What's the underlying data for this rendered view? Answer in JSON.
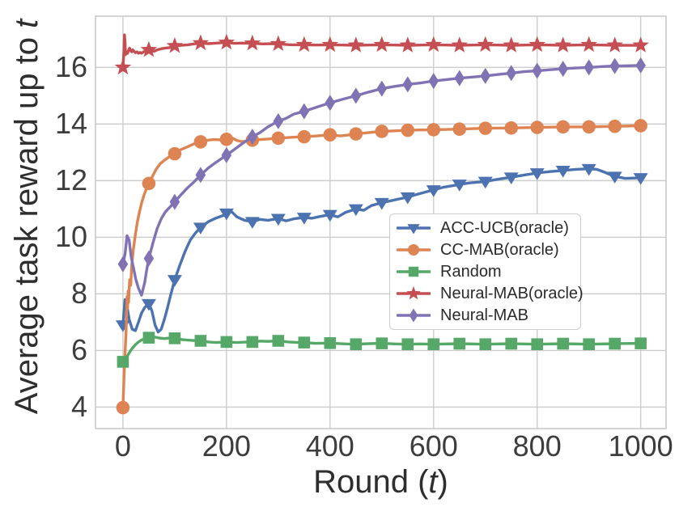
{
  "figure": {
    "background": "#ffffff",
    "text_color": "#2e2e2e",
    "tick_color": "#3d3d3d",
    "grid_color": "#cdcdcd",
    "border_color": "#c9c9c9"
  },
  "axes": {
    "xlabel_prefix": "Round (",
    "xlabel_italic": "t",
    "xlabel_suffix": ")",
    "ylabel_prefix": "Average task reward up to ",
    "ylabel_italic": "t"
  },
  "chart_data": {
    "type": "line",
    "title": "",
    "xlabel": "Round (t)",
    "ylabel": "Average task reward up to t",
    "xlim": [
      -53,
      1049
    ],
    "ylim": [
      3.24,
      17.81
    ],
    "xticks": [
      0,
      200,
      400,
      600,
      800,
      1000
    ],
    "yticks": [
      4,
      6,
      8,
      10,
      12,
      14,
      16
    ],
    "grid": true,
    "marker_interval": 50,
    "legend_position": "center-right",
    "series": [
      {
        "name": "ACC-UCB(oracle)",
        "color": "#4C72B0",
        "marker": "triangle-down",
        "points": [
          [
            0,
            6.9
          ],
          [
            4,
            7.8
          ],
          [
            8,
            7.55
          ],
          [
            12,
            7.1
          ],
          [
            18,
            6.75
          ],
          [
            24,
            6.7
          ],
          [
            30,
            7.0
          ],
          [
            36,
            7.32
          ],
          [
            42,
            7.52
          ],
          [
            50,
            7.65
          ],
          [
            56,
            7.4
          ],
          [
            62,
            6.9
          ],
          [
            68,
            6.65
          ],
          [
            74,
            6.75
          ],
          [
            80,
            7.1
          ],
          [
            86,
            7.5
          ],
          [
            92,
            7.95
          ],
          [
            100,
            8.5
          ],
          [
            110,
            9.02
          ],
          [
            120,
            9.5
          ],
          [
            130,
            9.9
          ],
          [
            140,
            10.15
          ],
          [
            150,
            10.35
          ],
          [
            165,
            10.55
          ],
          [
            180,
            10.68
          ],
          [
            195,
            10.78
          ],
          [
            200,
            10.85
          ],
          [
            210,
            10.9
          ],
          [
            220,
            10.72
          ],
          [
            235,
            10.6
          ],
          [
            250,
            10.55
          ],
          [
            265,
            10.63
          ],
          [
            280,
            10.6
          ],
          [
            300,
            10.66
          ],
          [
            315,
            10.58
          ],
          [
            330,
            10.65
          ],
          [
            350,
            10.7
          ],
          [
            365,
            10.67
          ],
          [
            380,
            10.73
          ],
          [
            400,
            10.8
          ],
          [
            415,
            10.72
          ],
          [
            430,
            10.88
          ],
          [
            450,
            11.0
          ],
          [
            465,
            10.95
          ],
          [
            480,
            11.12
          ],
          [
            500,
            11.22
          ],
          [
            520,
            11.3
          ],
          [
            540,
            11.38
          ],
          [
            550,
            11.42
          ],
          [
            565,
            11.5
          ],
          [
            585,
            11.6
          ],
          [
            600,
            11.67
          ],
          [
            620,
            11.77
          ],
          [
            640,
            11.83
          ],
          [
            650,
            11.87
          ],
          [
            670,
            11.92
          ],
          [
            700,
            11.97
          ],
          [
            725,
            12.05
          ],
          [
            750,
            12.12
          ],
          [
            775,
            12.2
          ],
          [
            800,
            12.27
          ],
          [
            825,
            12.32
          ],
          [
            850,
            12.36
          ],
          [
            875,
            12.4
          ],
          [
            900,
            12.42
          ],
          [
            915,
            12.4
          ],
          [
            930,
            12.3
          ],
          [
            945,
            12.18
          ],
          [
            950,
            12.15
          ],
          [
            970,
            12.08
          ],
          [
            1000,
            12.1
          ]
        ]
      },
      {
        "name": "CC-MAB(oracle)",
        "color": "#DD8452",
        "marker": "circle",
        "points": [
          [
            0,
            3.98
          ],
          [
            2,
            5.0
          ],
          [
            4,
            5.9
          ],
          [
            6,
            6.6
          ],
          [
            8,
            7.9
          ],
          [
            9,
            7.5
          ],
          [
            10,
            8.1
          ],
          [
            11,
            7.7
          ],
          [
            13,
            8.5
          ],
          [
            15,
            8.3
          ],
          [
            17,
            9.0
          ],
          [
            20,
            9.55
          ],
          [
            24,
            10.1
          ],
          [
            28,
            10.55
          ],
          [
            32,
            10.9
          ],
          [
            36,
            11.2
          ],
          [
            40,
            11.45
          ],
          [
            45,
            11.7
          ],
          [
            50,
            11.9
          ],
          [
            57,
            12.15
          ],
          [
            64,
            12.4
          ],
          [
            72,
            12.6
          ],
          [
            80,
            12.72
          ],
          [
            90,
            12.85
          ],
          [
            100,
            12.95
          ],
          [
            112,
            13.1
          ],
          [
            125,
            13.2
          ],
          [
            137,
            13.3
          ],
          [
            150,
            13.37
          ],
          [
            160,
            13.42
          ],
          [
            175,
            13.45
          ],
          [
            190,
            13.44
          ],
          [
            200,
            13.46
          ],
          [
            210,
            13.52
          ],
          [
            220,
            13.42
          ],
          [
            230,
            13.38
          ],
          [
            240,
            13.4
          ],
          [
            250,
            13.43
          ],
          [
            265,
            13.45
          ],
          [
            280,
            13.47
          ],
          [
            300,
            13.5
          ],
          [
            325,
            13.53
          ],
          [
            350,
            13.55
          ],
          [
            375,
            13.58
          ],
          [
            400,
            13.62
          ],
          [
            420,
            13.58
          ],
          [
            440,
            13.62
          ],
          [
            450,
            13.65
          ],
          [
            475,
            13.7
          ],
          [
            500,
            13.74
          ],
          [
            525,
            13.76
          ],
          [
            550,
            13.78
          ],
          [
            575,
            13.79
          ],
          [
            600,
            13.8
          ],
          [
            650,
            13.82
          ],
          [
            700,
            13.85
          ],
          [
            750,
            13.86
          ],
          [
            800,
            13.88
          ],
          [
            850,
            13.9
          ],
          [
            900,
            13.9
          ],
          [
            950,
            13.92
          ],
          [
            1000,
            13.94
          ]
        ]
      },
      {
        "name": "Random",
        "color": "#55A868",
        "marker": "square",
        "points": [
          [
            0,
            5.6
          ],
          [
            5,
            5.7
          ],
          [
            10,
            5.85
          ],
          [
            15,
            6.0
          ],
          [
            20,
            6.12
          ],
          [
            25,
            6.22
          ],
          [
            30,
            6.3
          ],
          [
            35,
            6.36
          ],
          [
            40,
            6.4
          ],
          [
            50,
            6.45
          ],
          [
            60,
            6.48
          ],
          [
            70,
            6.44
          ],
          [
            80,
            6.42
          ],
          [
            90,
            6.44
          ],
          [
            100,
            6.43
          ],
          [
            115,
            6.38
          ],
          [
            130,
            6.36
          ],
          [
            150,
            6.34
          ],
          [
            165,
            6.3
          ],
          [
            180,
            6.28
          ],
          [
            200,
            6.3
          ],
          [
            220,
            6.28
          ],
          [
            240,
            6.3
          ],
          [
            250,
            6.3
          ],
          [
            265,
            6.33
          ],
          [
            280,
            6.32
          ],
          [
            300,
            6.34
          ],
          [
            320,
            6.3
          ],
          [
            340,
            6.28
          ],
          [
            350,
            6.28
          ],
          [
            370,
            6.25
          ],
          [
            400,
            6.26
          ],
          [
            430,
            6.23
          ],
          [
            450,
            6.22
          ],
          [
            475,
            6.24
          ],
          [
            500,
            6.25
          ],
          [
            525,
            6.23
          ],
          [
            550,
            6.22
          ],
          [
            575,
            6.23
          ],
          [
            600,
            6.22
          ],
          [
            650,
            6.24
          ],
          [
            700,
            6.22
          ],
          [
            750,
            6.24
          ],
          [
            800,
            6.22
          ],
          [
            850,
            6.24
          ],
          [
            900,
            6.22
          ],
          [
            950,
            6.24
          ],
          [
            1000,
            6.25
          ]
        ]
      },
      {
        "name": "Neural-MAB(oracle)",
        "color": "#C44E52",
        "marker": "star",
        "points": [
          [
            0,
            16.0
          ],
          [
            2,
            16.6
          ],
          [
            3,
            17.15
          ],
          [
            4,
            16.9
          ],
          [
            5,
            16.45
          ],
          [
            7,
            16.55
          ],
          [
            9,
            16.5
          ],
          [
            11,
            16.62
          ],
          [
            13,
            16.68
          ],
          [
            15,
            16.6
          ],
          [
            17,
            16.55
          ],
          [
            19,
            16.62
          ],
          [
            21,
            16.58
          ],
          [
            24,
            16.52
          ],
          [
            27,
            16.55
          ],
          [
            30,
            16.5
          ],
          [
            33,
            16.53
          ],
          [
            36,
            16.5
          ],
          [
            40,
            16.55
          ],
          [
            44,
            16.58
          ],
          [
            50,
            16.62
          ],
          [
            55,
            16.6
          ],
          [
            60,
            16.57
          ],
          [
            66,
            16.62
          ],
          [
            72,
            16.65
          ],
          [
            80,
            16.68
          ],
          [
            90,
            16.7
          ],
          [
            100,
            16.76
          ],
          [
            112,
            16.78
          ],
          [
            125,
            16.8
          ],
          [
            137,
            16.83
          ],
          [
            150,
            16.86
          ],
          [
            165,
            16.84
          ],
          [
            180,
            16.86
          ],
          [
            200,
            16.88
          ],
          [
            215,
            16.85
          ],
          [
            230,
            16.86
          ],
          [
            250,
            16.85
          ],
          [
            270,
            16.83
          ],
          [
            290,
            16.84
          ],
          [
            300,
            16.83
          ],
          [
            325,
            16.8
          ],
          [
            350,
            16.8
          ],
          [
            375,
            16.79
          ],
          [
            400,
            16.8
          ],
          [
            425,
            16.79
          ],
          [
            450,
            16.78
          ],
          [
            475,
            16.79
          ],
          [
            500,
            16.8
          ],
          [
            525,
            16.79
          ],
          [
            550,
            16.78
          ],
          [
            575,
            16.79
          ],
          [
            600,
            16.8
          ],
          [
            625,
            16.79
          ],
          [
            650,
            16.78
          ],
          [
            675,
            16.79
          ],
          [
            700,
            16.8
          ],
          [
            725,
            16.79
          ],
          [
            750,
            16.78
          ],
          [
            775,
            16.79
          ],
          [
            800,
            16.8
          ],
          [
            825,
            16.79
          ],
          [
            850,
            16.78
          ],
          [
            875,
            16.79
          ],
          [
            900,
            16.8
          ],
          [
            925,
            16.79
          ],
          [
            950,
            16.78
          ],
          [
            975,
            16.78
          ],
          [
            1000,
            16.78
          ]
        ]
      },
      {
        "name": "Neural-MAB",
        "color": "#8172B3",
        "marker": "diamond",
        "points": [
          [
            0,
            9.05
          ],
          [
            4,
            9.4
          ],
          [
            8,
            10.05
          ],
          [
            12,
            9.9
          ],
          [
            16,
            9.3
          ],
          [
            20,
            8.95
          ],
          [
            25,
            8.5
          ],
          [
            30,
            8.2
          ],
          [
            36,
            7.95
          ],
          [
            42,
            8.4
          ],
          [
            46,
            8.85
          ],
          [
            50,
            9.25
          ],
          [
            58,
            9.8
          ],
          [
            66,
            10.3
          ],
          [
            74,
            10.65
          ],
          [
            82,
            10.9
          ],
          [
            90,
            11.05
          ],
          [
            100,
            11.25
          ],
          [
            112,
            11.5
          ],
          [
            125,
            11.75
          ],
          [
            137,
            11.95
          ],
          [
            150,
            12.2
          ],
          [
            165,
            12.45
          ],
          [
            180,
            12.65
          ],
          [
            200,
            12.9
          ],
          [
            215,
            13.1
          ],
          [
            230,
            13.3
          ],
          [
            250,
            13.55
          ],
          [
            265,
            13.7
          ],
          [
            280,
            13.9
          ],
          [
            300,
            14.1
          ],
          [
            315,
            14.2
          ],
          [
            330,
            14.35
          ],
          [
            350,
            14.45
          ],
          [
            375,
            14.6
          ],
          [
            400,
            14.75
          ],
          [
            425,
            14.88
          ],
          [
            450,
            15.0
          ],
          [
            475,
            15.13
          ],
          [
            500,
            15.25
          ],
          [
            525,
            15.33
          ],
          [
            550,
            15.4
          ],
          [
            575,
            15.45
          ],
          [
            600,
            15.52
          ],
          [
            625,
            15.57
          ],
          [
            650,
            15.62
          ],
          [
            675,
            15.66
          ],
          [
            700,
            15.7
          ],
          [
            725,
            15.75
          ],
          [
            750,
            15.8
          ],
          [
            775,
            15.85
          ],
          [
            800,
            15.88
          ],
          [
            825,
            15.92
          ],
          [
            850,
            15.95
          ],
          [
            875,
            15.98
          ],
          [
            900,
            16.0
          ],
          [
            925,
            16.03
          ],
          [
            950,
            16.05
          ],
          [
            975,
            16.06
          ],
          [
            1000,
            16.07
          ]
        ]
      }
    ]
  }
}
